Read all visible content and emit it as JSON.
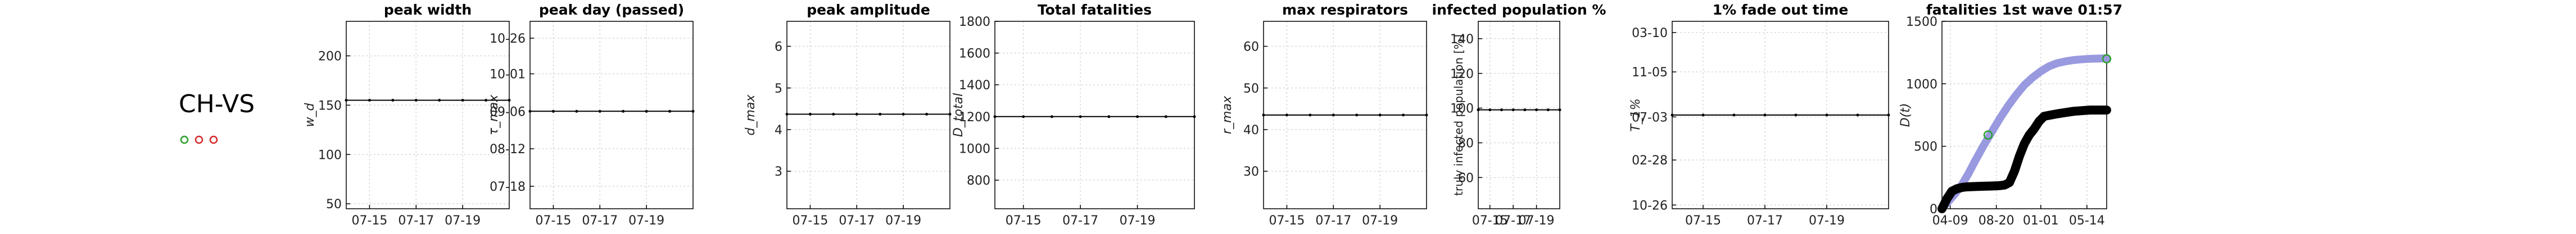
{
  "region_label": "CH-VS",
  "status_dots": [
    {
      "color": "#2ca02c"
    },
    {
      "color": "#d62728"
    },
    {
      "color": "#d62728"
    }
  ],
  "chart_data": [
    {
      "type": "line",
      "title": "peak width",
      "ylabel": "w_d",
      "ylim": [
        45,
        235
      ],
      "yticks": [
        50,
        100,
        150,
        200
      ],
      "ytick_labels": [
        "50",
        "100",
        "150",
        "200"
      ],
      "xlim": [
        0,
        7
      ],
      "xticks": [
        1,
        3,
        5
      ],
      "xtick_labels": [
        "07-15",
        "07-17",
        "07-19"
      ],
      "series": [
        {
          "x": [
            0,
            1,
            2,
            3,
            4,
            5,
            6,
            7
          ],
          "y": [
            155,
            155,
            155,
            155,
            155,
            155,
            155,
            155
          ]
        }
      ],
      "grid": true
    },
    {
      "type": "line",
      "title": "peak day (passed)",
      "ylabel": "τ_max",
      "ylim": [
        0,
        100
      ],
      "yticks": [
        12,
        32,
        52,
        72,
        91
      ],
      "ytick_labels": [
        "07-18",
        "08-12",
        "09-06",
        "10-01",
        "10-26"
      ],
      "xlim": [
        0,
        7
      ],
      "xticks": [
        1,
        3,
        5
      ],
      "xtick_labels": [
        "07-15",
        "07-17",
        "07-19"
      ],
      "series": [
        {
          "x": [
            0,
            1,
            2,
            3,
            4,
            5,
            6,
            7
          ],
          "y": [
            52,
            52,
            52,
            52,
            52,
            52,
            52,
            52
          ]
        }
      ],
      "grid": true
    },
    {
      "type": "line",
      "title": "peak amplitude",
      "ylabel": "d_max",
      "ylim": [
        2.1,
        6.6
      ],
      "yticks": [
        3,
        4,
        5,
        6
      ],
      "ytick_labels": [
        "3",
        "4",
        "5",
        "6"
      ],
      "xlim": [
        0,
        7
      ],
      "xticks": [
        1,
        3,
        5
      ],
      "xtick_labels": [
        "07-15",
        "07-17",
        "07-19"
      ],
      "series": [
        {
          "x": [
            0,
            1,
            2,
            3,
            4,
            5,
            6,
            7
          ],
          "y": [
            4.37,
            4.37,
            4.37,
            4.37,
            4.37,
            4.37,
            4.37,
            4.37
          ]
        }
      ],
      "grid": true
    },
    {
      "type": "line",
      "title": "Total fatalities",
      "ylabel": "D_total",
      "ylim": [
        620,
        1800
      ],
      "yticks": [
        800,
        1000,
        1200,
        1400,
        1600,
        1800
      ],
      "ytick_labels": [
        "800",
        "1000",
        "1200",
        "1400",
        "1600",
        "1800"
      ],
      "xlim": [
        0,
        7
      ],
      "xticks": [
        1,
        3,
        5
      ],
      "xtick_labels": [
        "07-15",
        "07-17",
        "07-19"
      ],
      "series": [
        {
          "x": [
            0,
            1,
            2,
            3,
            4,
            5,
            6,
            7
          ],
          "y": [
            1200,
            1200,
            1200,
            1200,
            1200,
            1200,
            1200,
            1200
          ]
        }
      ],
      "grid": true
    },
    {
      "type": "line",
      "title": "max respirators",
      "ylabel": "r_max",
      "ylim": [
        21,
        66
      ],
      "yticks": [
        30,
        40,
        50,
        60
      ],
      "ytick_labels": [
        "30",
        "40",
        "50",
        "60"
      ],
      "xlim": [
        0,
        7
      ],
      "xticks": [
        1,
        3,
        5
      ],
      "xtick_labels": [
        "07-15",
        "07-17",
        "07-19"
      ],
      "series": [
        {
          "x": [
            0,
            1,
            2,
            3,
            4,
            5,
            6,
            7
          ],
          "y": [
            43.5,
            43.5,
            43.5,
            43.5,
            43.5,
            43.5,
            43.5,
            43.5
          ]
        }
      ],
      "grid": true
    },
    {
      "type": "line",
      "title": "infected population %",
      "ylabel": "truly infected population [%]",
      "ylim": [
        42,
        150
      ],
      "yticks": [
        60,
        80,
        100,
        120,
        140
      ],
      "ytick_labels": [
        "60",
        "80",
        "100",
        "120",
        "140"
      ],
      "xlim": [
        0,
        7
      ],
      "xticks": [
        1,
        3,
        5
      ],
      "xtick_labels": [
        "07-15",
        "07-17",
        "07-19"
      ],
      "series": [
        {
          "x": [
            0,
            1,
            2,
            3,
            4,
            5,
            6,
            7
          ],
          "y": [
            99,
            99,
            99,
            99,
            99,
            99,
            99,
            99
          ]
        }
      ],
      "grid": true
    },
    {
      "type": "line",
      "title": "1% fade out time",
      "ylabel": "T_1%",
      "ylim": [
        0,
        100
      ],
      "yticks": [
        2,
        26,
        49,
        73,
        94
      ],
      "ytick_labels": [
        "10-26",
        "02-28",
        "07-03",
        "11-05",
        "03-10"
      ],
      "xlim": [
        0,
        7
      ],
      "xticks": [
        1,
        3,
        5
      ],
      "xtick_labels": [
        "07-15",
        "07-17",
        "07-19"
      ],
      "series": [
        {
          "x": [
            0,
            1,
            2,
            3,
            4,
            5,
            6,
            7
          ],
          "y": [
            50,
            50,
            50,
            50,
            50,
            50,
            50,
            50
          ]
        }
      ],
      "grid": true
    },
    {
      "type": "line",
      "title": "fatalities 1st wave 01:57",
      "ylabel": "D(t)",
      "ylim": [
        0,
        1500
      ],
      "yticks": [
        0,
        500,
        1000,
        1500
      ],
      "ytick_labels": [
        "0",
        "500",
        "1000",
        "1500"
      ],
      "xlim": [
        0,
        100
      ],
      "xticks": [
        5,
        33,
        60,
        88
      ],
      "xtick_labels": [
        "04-09",
        "08-20",
        "01-01",
        "05-14"
      ],
      "series": [
        {
          "color": "#9999e0",
          "x": [
            0,
            4,
            8,
            12,
            16,
            20,
            25,
            30,
            35,
            40,
            45,
            50,
            55,
            60,
            65,
            70,
            75,
            80,
            85,
            90,
            95,
            100
          ],
          "y": [
            0,
            60,
            120,
            190,
            280,
            380,
            500,
            610,
            720,
            820,
            910,
            990,
            1050,
            1100,
            1140,
            1165,
            1180,
            1190,
            1196,
            1200,
            1202,
            1204
          ]
        },
        {
          "color": "#000000",
          "x": [
            0,
            3,
            6,
            9,
            12,
            15,
            20,
            25,
            30,
            35,
            38,
            41,
            44,
            47,
            50,
            53,
            56,
            59,
            62,
            66,
            70,
            75,
            80,
            85,
            90,
            95,
            100
          ],
          "y": [
            0,
            80,
            140,
            160,
            170,
            175,
            178,
            180,
            182,
            185,
            190,
            210,
            300,
            420,
            520,
            590,
            640,
            700,
            740,
            750,
            760,
            770,
            780,
            785,
            790,
            790,
            790
          ]
        }
      ],
      "markers": [
        {
          "color": "#2ca02c",
          "x": 28,
          "y": 590
        },
        {
          "color": "#2ca02c",
          "x": 100,
          "y": 1200
        }
      ],
      "grid": true
    }
  ]
}
